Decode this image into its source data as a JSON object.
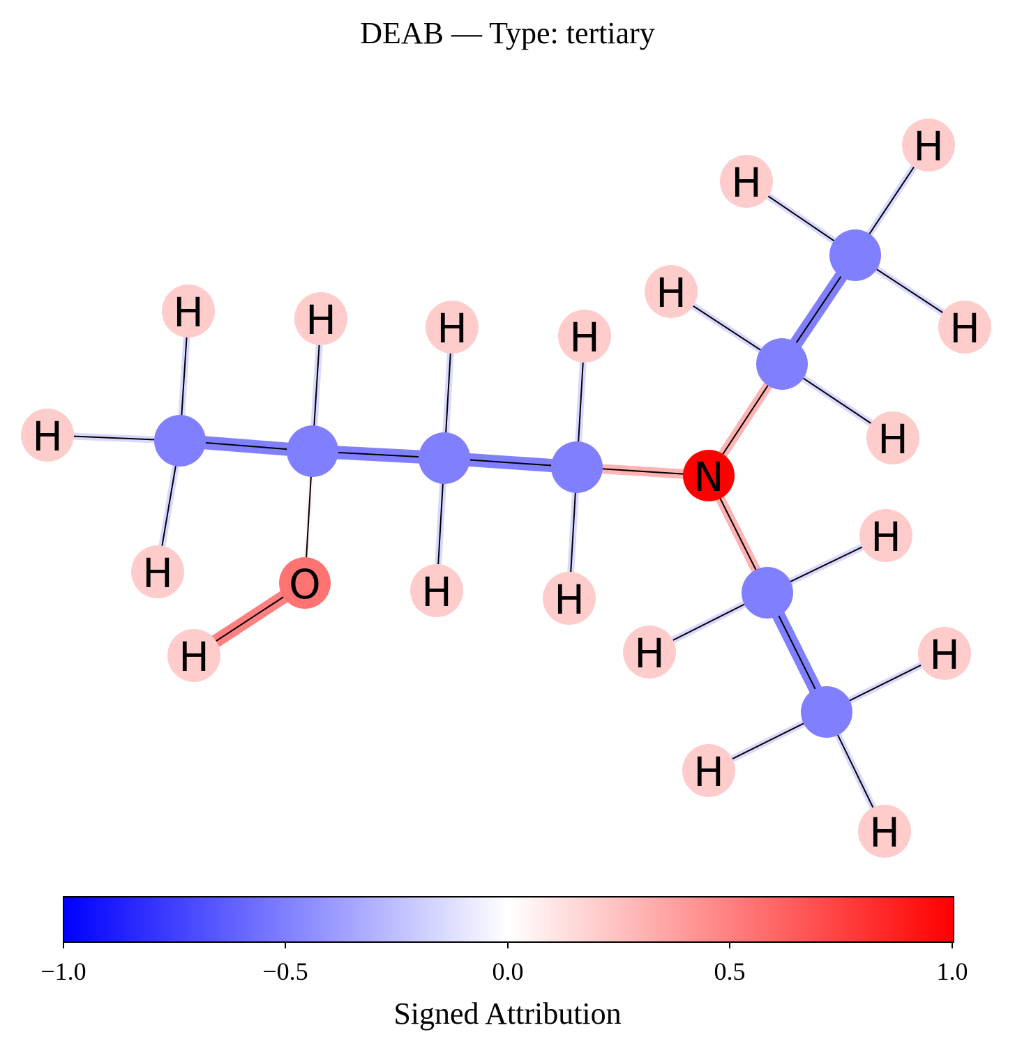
{
  "title": "DEAB — Type: tertiary",
  "colorbar": {
    "label": "Signed Attribution",
    "ticks": [
      "−1.0",
      "−0.5",
      "0.0",
      "0.5",
      "1.0"
    ],
    "min": -1.0,
    "max": 1.0,
    "colormap": "bwr",
    "colors": {
      "negative": "#0000ff",
      "zero": "#ffffff",
      "positive": "#ff0000"
    }
  },
  "atoms": [
    {
      "id": "C1",
      "element": "C",
      "attribution": -0.5
    },
    {
      "id": "C2",
      "element": "C",
      "attribution": -0.5
    },
    {
      "id": "C3",
      "element": "C",
      "attribution": -0.5
    },
    {
      "id": "C4",
      "element": "C",
      "attribution": -0.5
    },
    {
      "id": "N",
      "element": "N",
      "attribution": 1.0
    },
    {
      "id": "O",
      "element": "O",
      "attribution": 0.55
    },
    {
      "id": "C5",
      "element": "C",
      "attribution": -0.5
    },
    {
      "id": "C6",
      "element": "C",
      "attribution": -0.5
    },
    {
      "id": "C7",
      "element": "C",
      "attribution": -0.5
    },
    {
      "id": "C8",
      "element": "C",
      "attribution": -0.5
    },
    {
      "id": "H1",
      "element": "H",
      "attribution": 0.2
    },
    {
      "id": "H2",
      "element": "H",
      "attribution": 0.2
    },
    {
      "id": "H3",
      "element": "H",
      "attribution": 0.2
    },
    {
      "id": "H4",
      "element": "H",
      "attribution": 0.2
    },
    {
      "id": "H5",
      "element": "H",
      "attribution": 0.2
    },
    {
      "id": "H6",
      "element": "H",
      "attribution": 0.2
    },
    {
      "id": "H7",
      "element": "H",
      "attribution": 0.2
    },
    {
      "id": "H8",
      "element": "H",
      "attribution": 0.2
    },
    {
      "id": "H9",
      "element": "H",
      "attribution": 0.2
    },
    {
      "id": "H10",
      "element": "H",
      "attribution": 0.2
    },
    {
      "id": "H11",
      "element": "H",
      "attribution": 0.2
    },
    {
      "id": "H12",
      "element": "H",
      "attribution": 0.2
    },
    {
      "id": "H13",
      "element": "H",
      "attribution": 0.2
    },
    {
      "id": "H14",
      "element": "H",
      "attribution": 0.2
    },
    {
      "id": "H15",
      "element": "H",
      "attribution": 0.2
    },
    {
      "id": "H16",
      "element": "H",
      "attribution": 0.2
    },
    {
      "id": "H17",
      "element": "H",
      "attribution": 0.2
    },
    {
      "id": "H18",
      "element": "H",
      "attribution": 0.2
    },
    {
      "id": "H19",
      "element": "H",
      "attribution": 0.2
    },
    {
      "id": "H20",
      "element": "H",
      "attribution": 0.2
    }
  ],
  "bonds": [
    {
      "a": "C1",
      "b": "C2",
      "attribution": -0.5
    },
    {
      "a": "C2",
      "b": "C3",
      "attribution": -0.5
    },
    {
      "a": "C3",
      "b": "C4",
      "attribution": -0.5
    },
    {
      "a": "C4",
      "b": "N",
      "attribution": 0.3
    },
    {
      "a": "N",
      "b": "C5",
      "attribution": 0.3
    },
    {
      "a": "C5",
      "b": "C6",
      "attribution": -0.5
    },
    {
      "a": "N",
      "b": "C7",
      "attribution": 0.3
    },
    {
      "a": "C7",
      "b": "C8",
      "attribution": -0.5
    },
    {
      "a": "C2",
      "b": "O",
      "attribution": 0.05
    },
    {
      "a": "O",
      "b": "H20",
      "attribution": 0.5
    },
    {
      "a": "C1",
      "b": "H1",
      "attribution": -0.15
    },
    {
      "a": "C1",
      "b": "H2",
      "attribution": -0.15
    },
    {
      "a": "C1",
      "b": "H3",
      "attribution": -0.15
    },
    {
      "a": "C2",
      "b": "H4",
      "attribution": -0.15
    },
    {
      "a": "C3",
      "b": "H5",
      "attribution": -0.15
    },
    {
      "a": "C3",
      "b": "H6",
      "attribution": -0.15
    },
    {
      "a": "C4",
      "b": "H7",
      "attribution": -0.15
    },
    {
      "a": "C4",
      "b": "H8",
      "attribution": -0.15
    },
    {
      "a": "C5",
      "b": "H9",
      "attribution": -0.15
    },
    {
      "a": "C5",
      "b": "H10",
      "attribution": -0.15
    },
    {
      "a": "C6",
      "b": "H11",
      "attribution": -0.15
    },
    {
      "a": "C6",
      "b": "H12",
      "attribution": -0.15
    },
    {
      "a": "C6",
      "b": "H13",
      "attribution": -0.15
    },
    {
      "a": "C7",
      "b": "H14",
      "attribution": -0.15
    },
    {
      "a": "C7",
      "b": "H15",
      "attribution": -0.15
    },
    {
      "a": "C8",
      "b": "H16",
      "attribution": -0.15
    },
    {
      "a": "C8",
      "b": "H17",
      "attribution": -0.15
    },
    {
      "a": "C8",
      "b": "H18",
      "attribution": -0.15
    }
  ]
}
